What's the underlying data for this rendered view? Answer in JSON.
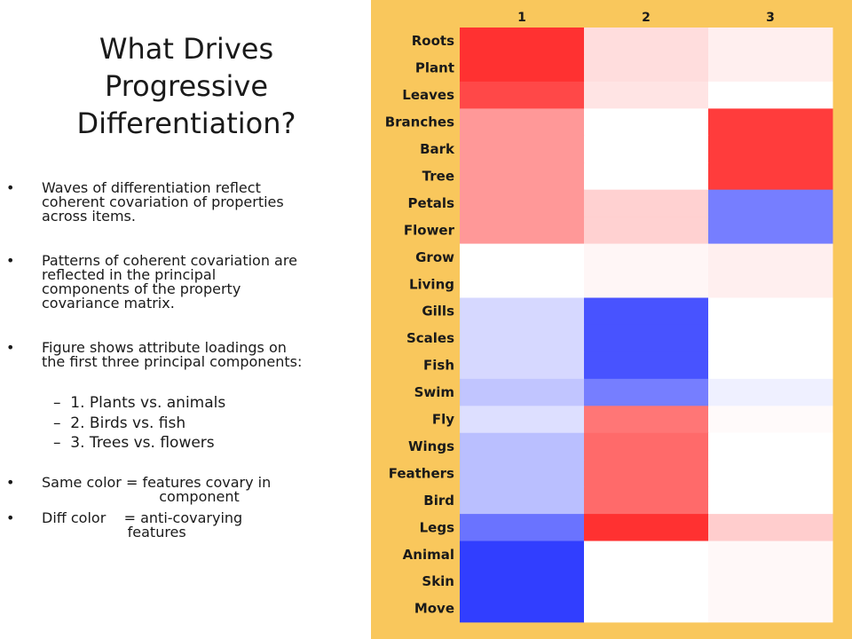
{
  "slide": {
    "title_lines": [
      "What Drives",
      "Progressive",
      "Differentiation?"
    ],
    "bullet_symbol": "•",
    "bullets": [
      {
        "lines": [
          "Waves of differentiation reflect",
          "coherent covariation of properties",
          "across items."
        ]
      },
      {
        "lines": [
          "Patterns of coherent covariation are",
          "reflected in the principal",
          "components of the property",
          "covariance matrix."
        ]
      },
      {
        "lines": [
          "Figure shows attribute loadings on",
          "the first three principal components:"
        ]
      }
    ],
    "sub_bullets": [
      "–  1. Plants vs. animals",
      "–  2. Birds vs. fish",
      "–  3. Trees vs. flowers"
    ],
    "notes": [
      {
        "lines": [
          "Same color = features covary in",
          "                          component"
        ]
      },
      {
        "lines": [
          "Diff color    = anti-covarying",
          "                   features"
        ]
      }
    ]
  },
  "chart_data": {
    "type": "heatmap",
    "columns": [
      "1",
      "2",
      "3"
    ],
    "rows": [
      "Roots",
      "Plant",
      "Leaves",
      "Branches",
      "Bark",
      "Tree",
      "Petals",
      "Flower",
      "Grow",
      "Living",
      "Gills",
      "Scales",
      "Fish",
      "Swim",
      "Fly",
      "Wings",
      "Feathers",
      "Bird",
      "Legs",
      "Animal",
      "Skin",
      "Move"
    ],
    "values": [
      [
        0.9,
        0.15,
        0.07
      ],
      [
        0.9,
        0.15,
        0.07
      ],
      [
        0.8,
        0.12,
        0.0
      ],
      [
        0.45,
        0.0,
        0.85
      ],
      [
        0.45,
        0.0,
        0.85
      ],
      [
        0.45,
        0.0,
        0.85
      ],
      [
        0.45,
        0.2,
        -0.6
      ],
      [
        0.45,
        0.2,
        -0.6
      ],
      [
        0.0,
        0.04,
        0.07
      ],
      [
        0.0,
        0.04,
        0.07
      ],
      [
        -0.18,
        -0.8,
        0.0
      ],
      [
        -0.18,
        -0.8,
        0.0
      ],
      [
        -0.18,
        -0.8,
        0.0
      ],
      [
        -0.27,
        -0.6,
        -0.07
      ],
      [
        -0.15,
        0.6,
        0.02
      ],
      [
        -0.3,
        0.65,
        0.0
      ],
      [
        -0.3,
        0.65,
        0.0
      ],
      [
        -0.3,
        0.65,
        0.0
      ],
      [
        -0.65,
        0.9,
        0.22
      ],
      [
        -0.9,
        0.0,
        0.03
      ],
      [
        -0.9,
        0.0,
        0.03
      ],
      [
        -0.9,
        0.0,
        0.03
      ]
    ],
    "color_scale": {
      "positive": "#ff1a1a",
      "negative": "#1a28ff",
      "zero": "#ffffff"
    },
    "background_color": "#f9c75c"
  }
}
